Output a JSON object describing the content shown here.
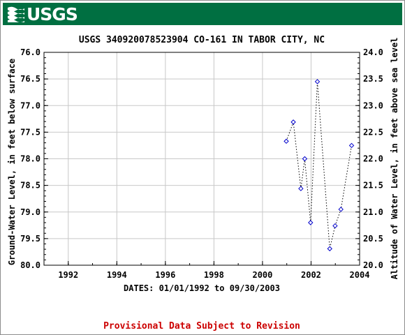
{
  "banner": {
    "logo_text": "USGS",
    "color": "#006f41"
  },
  "footer": {
    "provisional_note": "Provisional Data Subject to Revision",
    "note_color": "#cc0000"
  },
  "chart_data": {
    "type": "scatter",
    "title": "USGS 340920078523904 CO-161 IN TABOR CITY, NC",
    "xlabel": "DATES: 01/01/1992 to 09/30/2003",
    "ylabel_left": "Ground-Water Level, in feet below surface",
    "ylabel_right": "Altitude of Water Level, in feet above sea level",
    "xlim": [
      1991.0,
      2004.0
    ],
    "ylim_left": [
      76.0,
      80.0
    ],
    "ylim_left_inverted": true,
    "ylim_right": [
      20.0,
      24.0
    ],
    "x_ticks": [
      "1992",
      "1994",
      "1996",
      "1998",
      "2000",
      "2002",
      "2004"
    ],
    "y_ticks_left": [
      "76.0",
      "76.5",
      "77.0",
      "77.5",
      "78.0",
      "78.5",
      "79.0",
      "79.5",
      "80.0"
    ],
    "y_ticks_right": [
      "24.0",
      "23.5",
      "23.0",
      "22.5",
      "22.0",
      "21.5",
      "21.0",
      "20.5",
      "20.0"
    ],
    "grid": true,
    "marker": "diamond",
    "marker_color": "#0000cc",
    "line_style": "dotted",
    "series": [
      {
        "x": [
          2000.98,
          2001.27,
          2001.58,
          2001.74,
          2001.98,
          2002.26,
          2002.77,
          2002.99,
          2003.23,
          2003.67
        ],
        "y": [
          77.67,
          77.31,
          78.56,
          78.0,
          79.2,
          76.55,
          79.69,
          79.26,
          78.95,
          77.75
        ]
      }
    ]
  }
}
